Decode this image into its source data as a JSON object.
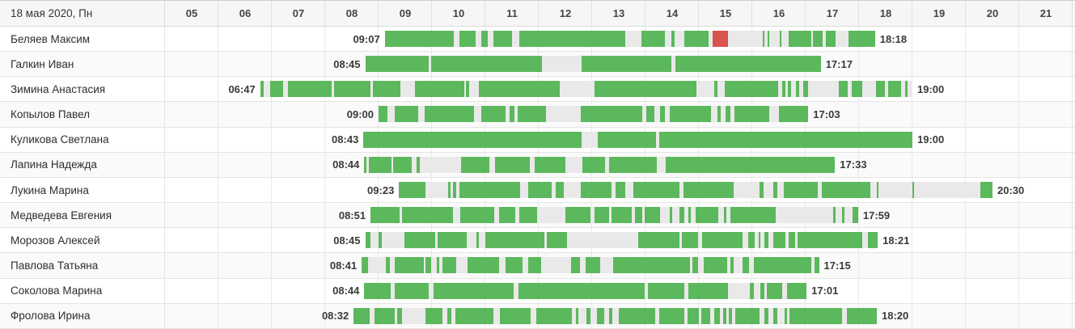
{
  "header": {
    "date_label": "18 мая 2020, Пн",
    "hours": [
      "05",
      "06",
      "07",
      "08",
      "09",
      "10",
      "11",
      "12",
      "13",
      "14",
      "15",
      "16",
      "17",
      "18",
      "19",
      "20",
      "21"
    ]
  },
  "colors": {
    "work": "#5cb85c",
    "alert": "#d9534f",
    "idle": "#e9e9e9"
  },
  "rows": [
    {
      "name": "Беляев Максим",
      "start": "09:07",
      "end": "18:18",
      "segments": [
        [
          "09:07",
          "10:25"
        ],
        [
          "10:31",
          "10:49"
        ],
        [
          "10:55",
          "11:03"
        ],
        [
          "11:09",
          "11:30"
        ],
        [
          "11:38",
          "13:37"
        ],
        [
          "13:55",
          "14:22"
        ],
        [
          "14:29",
          "14:33"
        ],
        [
          "14:44",
          "15:11"
        ],
        [
          "15:15",
          "15:33",
          "alert"
        ],
        [
          "16:12",
          "16:14"
        ],
        [
          "16:17",
          "16:19"
        ],
        [
          "16:31",
          "16:33"
        ],
        [
          "16:41",
          "17:06"
        ],
        [
          "17:08",
          "17:19"
        ],
        [
          "17:23",
          "17:34"
        ],
        [
          "17:48",
          "18:18"
        ]
      ]
    },
    {
      "name": "Галкин Иван",
      "start": "08:45",
      "end": "17:17",
      "segments": [
        [
          "08:45",
          "09:56"
        ],
        [
          "09:59",
          "12:04"
        ],
        [
          "12:48",
          "14:29"
        ],
        [
          "14:34",
          "17:17"
        ]
      ]
    },
    {
      "name": "Зимина Анастасия",
      "start": "06:47",
      "end": "19:00",
      "segments": [
        [
          "06:47",
          "06:51"
        ],
        [
          "06:58",
          "07:13"
        ],
        [
          "07:18",
          "08:07"
        ],
        [
          "08:10",
          "08:51"
        ],
        [
          "08:54",
          "09:25"
        ],
        [
          "09:41",
          "10:36"
        ],
        [
          "10:38",
          "10:42"
        ],
        [
          "10:53",
          "12:24"
        ],
        [
          "13:03",
          "14:57"
        ],
        [
          "15:17",
          "15:21"
        ],
        [
          "15:29",
          "16:29"
        ],
        [
          "16:34",
          "16:37"
        ],
        [
          "16:40",
          "16:44"
        ],
        [
          "16:49",
          "16:53"
        ],
        [
          "16:57",
          "17:03"
        ],
        [
          "17:37",
          "17:47"
        ],
        [
          "17:52",
          "18:04"
        ],
        [
          "18:19",
          "18:29"
        ],
        [
          "18:33",
          "18:47"
        ],
        [
          "18:52",
          "18:55"
        ]
      ]
    },
    {
      "name": "Копылов Павел",
      "start": "09:00",
      "end": "17:03",
      "segments": [
        [
          "09:00",
          "09:10"
        ],
        [
          "09:18",
          "09:45"
        ],
        [
          "09:52",
          "10:47"
        ],
        [
          "10:55",
          "11:23"
        ],
        [
          "11:27",
          "11:33"
        ],
        [
          "11:36",
          "12:08"
        ],
        [
          "12:47",
          "13:56"
        ],
        [
          "14:01",
          "14:10"
        ],
        [
          "14:16",
          "14:22"
        ],
        [
          "14:27",
          "15:14"
        ],
        [
          "15:21",
          "15:25"
        ],
        [
          "15:30",
          "15:35"
        ],
        [
          "15:40",
          "16:19"
        ],
        [
          "16:30",
          "17:03"
        ]
      ]
    },
    {
      "name": "Куликова Светлана",
      "start": "08:43",
      "end": "19:00",
      "segments": [
        [
          "08:43",
          "12:48"
        ],
        [
          "13:06",
          "14:12"
        ],
        [
          "14:15",
          "19:00"
        ]
      ]
    },
    {
      "name": "Лапина Надежда",
      "start": "08:44",
      "end": "17:33",
      "segments": [
        [
          "08:44",
          "08:46"
        ],
        [
          "08:49",
          "09:15"
        ],
        [
          "09:16",
          "09:37"
        ],
        [
          "09:43",
          "09:46"
        ],
        [
          "10:33",
          "11:05"
        ],
        [
          "11:11",
          "11:50"
        ],
        [
          "11:55",
          "12:30"
        ],
        [
          "12:49",
          "13:15"
        ],
        [
          "13:19",
          "14:13"
        ],
        [
          "14:23",
          "17:33"
        ]
      ]
    },
    {
      "name": "Лукина Марина",
      "start": "09:23",
      "end": "20:30",
      "segments": [
        [
          "09:23",
          "09:53"
        ],
        [
          "10:18",
          "10:21"
        ],
        [
          "10:24",
          "10:27"
        ],
        [
          "10:31",
          "11:39"
        ],
        [
          "11:48",
          "12:15"
        ],
        [
          "12:19",
          "12:28"
        ],
        [
          "12:47",
          "13:22"
        ],
        [
          "13:26",
          "13:37"
        ],
        [
          "13:46",
          "14:38"
        ],
        [
          "14:43",
          "15:39"
        ],
        [
          "16:08",
          "16:13"
        ],
        [
          "16:24",
          "16:28"
        ],
        [
          "16:35",
          "17:14"
        ],
        [
          "17:18",
          "18:13"
        ],
        [
          "18:20",
          "18:22"
        ],
        [
          "19:00",
          "19:02"
        ],
        [
          "20:16",
          "20:30"
        ]
      ]
    },
    {
      "name": "Медведева Евгения",
      "start": "08:51",
      "end": "17:59",
      "segments": [
        [
          "08:51",
          "09:24"
        ],
        [
          "09:26",
          "10:24"
        ],
        [
          "10:32",
          "11:10"
        ],
        [
          "11:15",
          "11:34"
        ],
        [
          "11:38",
          "11:58"
        ],
        [
          "12:30",
          "12:58"
        ],
        [
          "13:03",
          "13:19"
        ],
        [
          "13:22",
          "13:45"
        ],
        [
          "13:48",
          "13:56"
        ],
        [
          "13:59",
          "14:16"
        ],
        [
          "14:27",
          "14:30"
        ],
        [
          "14:38",
          "14:44"
        ],
        [
          "14:48",
          "14:51"
        ],
        [
          "14:56",
          "15:22"
        ],
        [
          "15:28",
          "15:31"
        ],
        [
          "15:35",
          "16:26"
        ],
        [
          "17:31",
          "17:34"
        ],
        [
          "17:41",
          "17:44"
        ],
        [
          "17:53",
          "17:59"
        ]
      ]
    },
    {
      "name": "Морозов Алексей",
      "start": "08:45",
      "end": "18:21",
      "segments": [
        [
          "08:45",
          "08:51"
        ],
        [
          "09:00",
          "09:04"
        ],
        [
          "09:29",
          "10:04"
        ],
        [
          "10:06",
          "10:39"
        ],
        [
          "10:50",
          "10:53"
        ],
        [
          "11:00",
          "12:06"
        ],
        [
          "12:09",
          "12:32"
        ],
        [
          "13:52",
          "14:38"
        ],
        [
          "14:41",
          "14:59"
        ],
        [
          "15:04",
          "15:49"
        ],
        [
          "15:55",
          "16:03"
        ],
        [
          "16:07",
          "16:09"
        ],
        [
          "16:14",
          "16:18"
        ],
        [
          "16:24",
          "16:37"
        ],
        [
          "16:41",
          "16:48"
        ],
        [
          "16:51",
          "18:04"
        ],
        [
          "18:10",
          "18:21"
        ]
      ]
    },
    {
      "name": "Павлова Татьяна",
      "start": "08:41",
      "end": "17:15",
      "segments": [
        [
          "08:41",
          "08:48"
        ],
        [
          "09:08",
          "09:13"
        ],
        [
          "09:18",
          "09:51"
        ],
        [
          "09:53",
          "09:59"
        ],
        [
          "10:05",
          "10:08"
        ],
        [
          "10:12",
          "10:27"
        ],
        [
          "10:40",
          "11:15"
        ],
        [
          "11:23",
          "11:42"
        ],
        [
          "11:48",
          "12:03"
        ],
        [
          "12:36",
          "12:46"
        ],
        [
          "12:53",
          "13:09"
        ],
        [
          "13:24",
          "14:50"
        ],
        [
          "14:53",
          "14:59"
        ],
        [
          "15:05",
          "15:32"
        ],
        [
          "15:35",
          "15:39"
        ],
        [
          "15:49",
          "15:56"
        ],
        [
          "16:02",
          "17:06"
        ],
        [
          "17:10",
          "17:15"
        ]
      ]
    },
    {
      "name": "Соколова Марина",
      "start": "08:44",
      "end": "17:01",
      "segments": [
        [
          "08:44",
          "09:14"
        ],
        [
          "09:18",
          "09:56"
        ],
        [
          "10:02",
          "11:32"
        ],
        [
          "11:37",
          "13:59"
        ],
        [
          "14:03",
          "14:44"
        ],
        [
          "14:48",
          "15:33"
        ],
        [
          "15:57",
          "16:02"
        ],
        [
          "16:09",
          "16:14"
        ],
        [
          "16:16",
          "16:34"
        ],
        [
          "16:39",
          "17:01"
        ]
      ]
    },
    {
      "name": "Фролова Ирина",
      "start": "08:32",
      "end": "18:20",
      "segments": [
        [
          "08:32",
          "08:50"
        ],
        [
          "08:55",
          "09:18"
        ],
        [
          "09:21",
          "09:26"
        ],
        [
          "09:53",
          "10:12"
        ],
        [
          "10:17",
          "10:22"
        ],
        [
          "10:26",
          "11:09"
        ],
        [
          "11:16",
          "11:51"
        ],
        [
          "11:57",
          "12:37"
        ],
        [
          "12:42",
          "12:45"
        ],
        [
          "12:54",
          "12:58"
        ],
        [
          "13:05",
          "13:14"
        ],
        [
          "13:19",
          "13:23"
        ],
        [
          "13:30",
          "14:11"
        ],
        [
          "14:15",
          "14:44"
        ],
        [
          "14:47",
          "15:00"
        ],
        [
          "15:03",
          "15:13"
        ],
        [
          "15:17",
          "15:24"
        ],
        [
          "15:27",
          "15:31"
        ],
        [
          "15:34",
          "15:37"
        ],
        [
          "15:41",
          "16:08"
        ],
        [
          "16:14",
          "16:18"
        ],
        [
          "16:24",
          "16:28"
        ],
        [
          "16:36",
          "16:39"
        ],
        [
          "16:42",
          "17:41"
        ],
        [
          "17:46",
          "18:20"
        ]
      ]
    }
  ]
}
